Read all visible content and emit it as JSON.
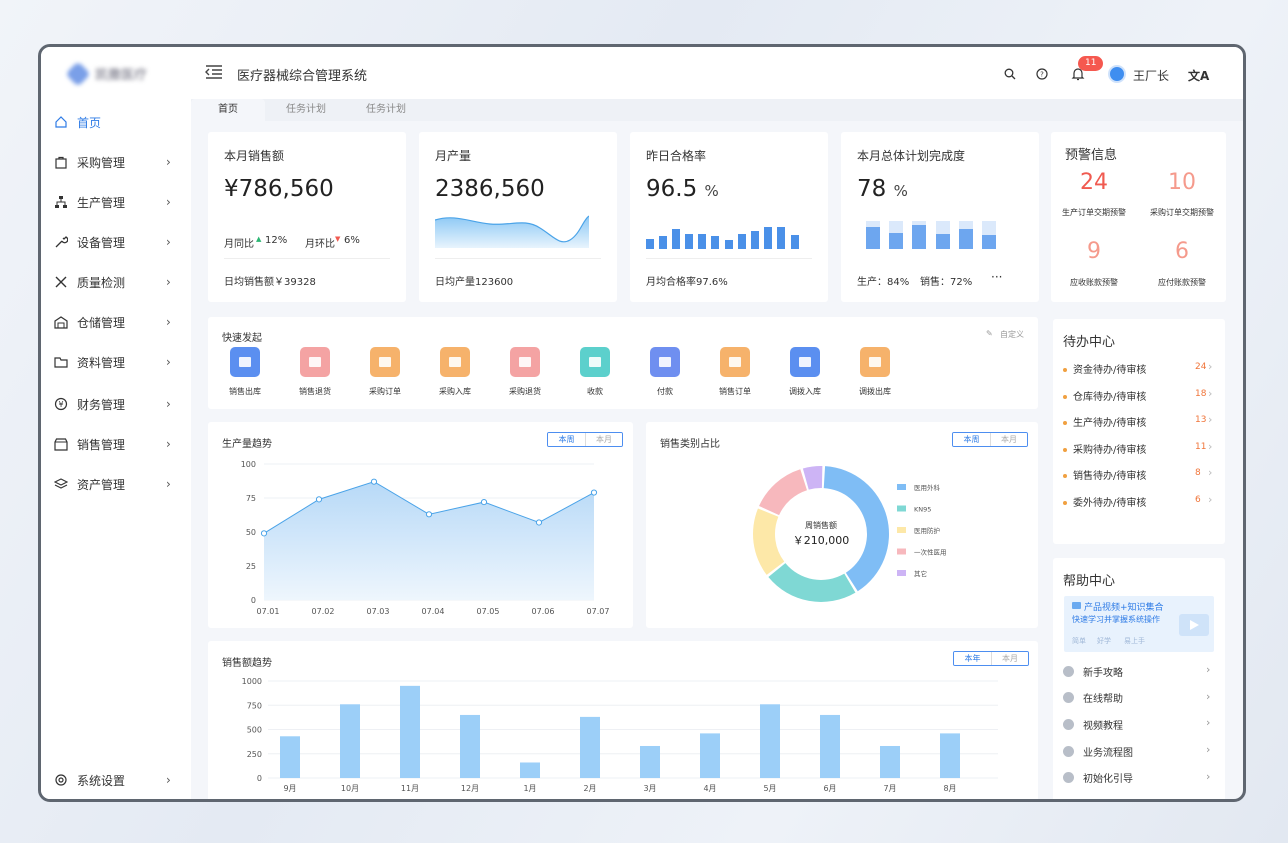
{
  "app": {
    "logo_text": "凯撒医疗",
    "system_title": "医疗器械综合管理系统",
    "username": "王厂长",
    "notification_count": "11",
    "lang_icon_label": "文A"
  },
  "sidebar": {
    "items": [
      {
        "label": "首页",
        "icon": "home-icon"
      },
      {
        "label": "采购管理",
        "icon": "bag-icon"
      },
      {
        "label": "生产管理",
        "icon": "org-chart-icon"
      },
      {
        "label": "设备管理",
        "icon": "wrench-icon"
      },
      {
        "label": "质量检测",
        "icon": "tools-icon"
      },
      {
        "label": "仓储管理",
        "icon": "warehouse-icon"
      },
      {
        "label": "资料管理",
        "icon": "folder-icon"
      },
      {
        "label": "财务管理",
        "icon": "yen-icon"
      },
      {
        "label": "销售管理",
        "icon": "shop-icon"
      },
      {
        "label": "资产管理",
        "icon": "layers-icon"
      }
    ],
    "settings_label": "系统设置"
  },
  "tabs": [
    "首页",
    "任务计划",
    "任务计划"
  ],
  "kpis": {
    "sales": {
      "title": "本月销售额",
      "value": "¥786,560",
      "mom_label": "月同比",
      "mom_value": "12%",
      "yoy_label": "月环比",
      "yoy_value": "6%",
      "footer": "日均销售额￥39328"
    },
    "output": {
      "title": "月产量",
      "value": "2386,560",
      "footer": "日均产量123600"
    },
    "pass": {
      "title": "昨日合格率",
      "value": "96.5",
      "unit": "%",
      "footer": "月均合格率97.6%"
    },
    "plan": {
      "title": "本月总体计划完成度",
      "value": "78",
      "unit": "%",
      "footer_a": "生产：84%",
      "footer_b": "销售：72%",
      "more": "···"
    }
  },
  "warnings": {
    "title": "预警信息",
    "items": [
      {
        "num": "24",
        "label": "生产订单交期预警",
        "color": "#f05a50"
      },
      {
        "num": "10",
        "label": "采购订单交期预警",
        "color": "#f59a8c"
      },
      {
        "num": "9",
        "label": "应收账款预警",
        "color": "#f59a8c"
      },
      {
        "num": "6",
        "label": "应付账款预警",
        "color": "#f59a8c"
      }
    ]
  },
  "quick": {
    "title": "快速发起",
    "customize": "自定义",
    "items": [
      {
        "label": "销售出库",
        "color": "#5b8ff0"
      },
      {
        "label": "销售退货",
        "color": "#f4a3a3"
      },
      {
        "label": "采购订单",
        "color": "#f6b26b"
      },
      {
        "label": "采购入库",
        "color": "#f6b26b"
      },
      {
        "label": "采购退货",
        "color": "#f4a3a3"
      },
      {
        "label": "收款",
        "color": "#5cd0cc"
      },
      {
        "label": "付款",
        "color": "#6f8ff0"
      },
      {
        "label": "销售订单",
        "color": "#f6b26b"
      },
      {
        "label": "调拨入库",
        "color": "#5b8ff0"
      },
      {
        "label": "调拨出库",
        "color": "#f6b26b"
      }
    ]
  },
  "todo": {
    "title": "待办中心",
    "items": [
      {
        "label": "资金待办/待审核",
        "count": "24"
      },
      {
        "label": "仓库待办/待审核",
        "count": "18"
      },
      {
        "label": "生产待办/待审核",
        "count": "13"
      },
      {
        "label": "采购待办/待审核",
        "count": "11"
      },
      {
        "label": "销售待办/待审核",
        "count": "8"
      },
      {
        "label": "委外待办/待审核",
        "count": "6"
      }
    ]
  },
  "help": {
    "title": "帮助中心",
    "banner_title": "产品视频+知识集合",
    "banner_sub": "快速学习并掌握系统操作",
    "banner_tags": [
      "简单",
      "好学",
      "易上手"
    ],
    "items": [
      "新手攻略",
      "在线帮助",
      "视频教程",
      "业务流程图",
      "初始化引导"
    ]
  },
  "toggles": {
    "week": "本周",
    "month": "本月",
    "year": "本年"
  },
  "chart_data": [
    {
      "type": "area",
      "title": "生产量趋势",
      "categories": [
        "07.01",
        "07.02",
        "07.03",
        "07.04",
        "07.05",
        "07.06",
        "07.07"
      ],
      "values": [
        49,
        74,
        87,
        63,
        72,
        57,
        79
      ],
      "ylim": [
        0,
        100
      ],
      "yticks": [
        "0",
        "25",
        "50",
        "75",
        "100"
      ],
      "grid": true,
      "color": "#4aa3e8"
    },
    {
      "type": "pie",
      "title": "销售类别占比",
      "center_label": "周销售额",
      "center_value": "￥210,000",
      "labels": [
        "医用外科",
        "KN95",
        "医用防护",
        "一次性医用",
        "其它"
      ],
      "values": [
        39,
        22,
        16,
        13,
        4.5
      ],
      "colors": [
        "#7fbdf5",
        "#7fd8d4",
        "#fde8a8",
        "#f7b8bd",
        "#cdb4f5"
      ],
      "legend": "right"
    },
    {
      "type": "bar",
      "title": "销售额趋势",
      "categories": [
        "9月",
        "10月",
        "11月",
        "12月",
        "1月",
        "2月",
        "3月",
        "4月",
        "5月",
        "6月",
        "7月",
        "8月"
      ],
      "values": [
        430,
        760,
        950,
        650,
        160,
        630,
        330,
        460,
        760,
        650,
        330,
        460
      ],
      "ylim": [
        0,
        1000
      ],
      "yticks": [
        "0",
        "250",
        "500",
        "750",
        "1000"
      ],
      "grid": true,
      "color": "#9ccff8"
    }
  ]
}
